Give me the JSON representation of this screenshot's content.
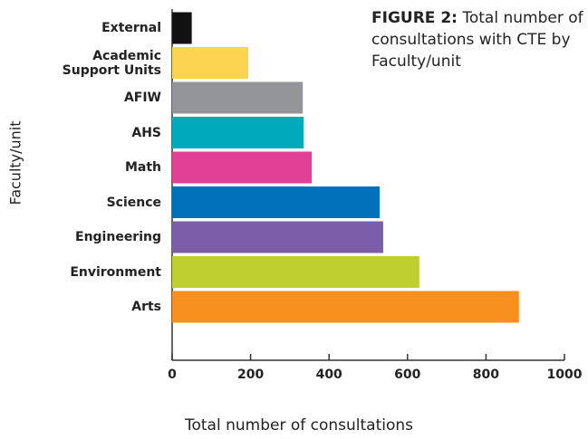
{
  "chart_data": {
    "type": "bar",
    "orientation": "horizontal",
    "title_label": "FIGURE 2:",
    "title": "Total number of consultations with CTE by Faculty/unit",
    "x_label": "Total number of consultations",
    "y_label": "Faculty/unit",
    "categories": [
      "External",
      "Academic Support Units",
      "AFIW",
      "AHS",
      "Math",
      "Science",
      "Engineering",
      "Environment",
      "Arts"
    ],
    "values": [
      50,
      194,
      333,
      335,
      356,
      529,
      538,
      630,
      884
    ],
    "colors": [
      "#111111",
      "#fdd44f",
      "#939598",
      "#00aabb",
      "#e23f97",
      "#0072bc",
      "#7b5ea7",
      "#bfcf2e",
      "#f7901e"
    ],
    "xlim": [
      0,
      1000
    ],
    "xticks": [
      0,
      200,
      400,
      600,
      800,
      1000
    ],
    "grid": false
  }
}
